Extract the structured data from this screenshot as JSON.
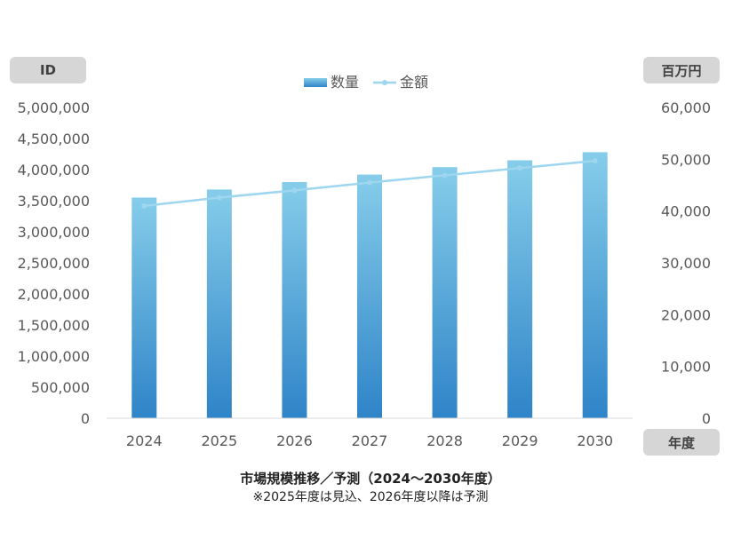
{
  "chart_data": {
    "type": "bar+line",
    "categories": [
      "2024",
      "2025",
      "2026",
      "2027",
      "2028",
      "2029",
      "2030"
    ],
    "series": [
      {
        "name": "数量",
        "kind": "bar",
        "axis": "left",
        "values": [
          3550000,
          3680000,
          3800000,
          3920000,
          4040000,
          4150000,
          4280000
        ]
      },
      {
        "name": "金額",
        "kind": "line",
        "axis": "right",
        "values": [
          41000,
          42600,
          44000,
          45500,
          46900,
          48300,
          49700
        ]
      }
    ],
    "left_axis": {
      "unit_label": "ID",
      "min": 0,
      "max": 5000000,
      "step": 500000,
      "tick_labels": [
        "0",
        "500,000",
        "1,000,000",
        "1,500,000",
        "2,000,000",
        "2,500,000",
        "3,000,000",
        "3,500,000",
        "4,000,000",
        "4,500,000",
        "5,000,000"
      ]
    },
    "right_axis": {
      "unit_label": "百万円",
      "min": 0,
      "max": 60000,
      "step": 10000,
      "tick_labels": [
        "0",
        "10,000",
        "20,000",
        "30,000",
        "40,000",
        "50,000",
        "60,000"
      ]
    },
    "x_axis": {
      "unit_label": "年度"
    },
    "legend": {
      "position": "top",
      "items": [
        "数量",
        "金額"
      ]
    },
    "grid": false,
    "title": "市場規模推移／予測（2024～2030年度）",
    "note": "※2025年度は見込、2026年度以降は予測",
    "colors": {
      "bar_top": "#86cdea",
      "bar_bottom": "#2f84c8",
      "line": "#9dd6ee",
      "axis": "#d9d9d9"
    }
  }
}
